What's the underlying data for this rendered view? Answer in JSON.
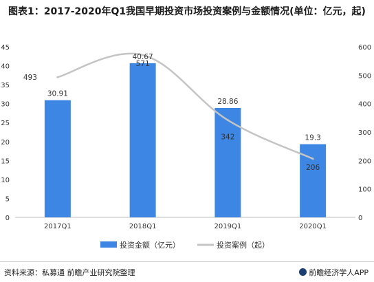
{
  "title": "图表1：2017-2020年Q1我国早期投资市场投资案例与金额情况(单位：亿元，起)",
  "chart_data": {
    "type": "bar+line",
    "categories": [
      "2017Q1",
      "2018Q1",
      "2019Q1",
      "2020Q1"
    ],
    "series": [
      {
        "name": "投资金额（亿元）",
        "type": "bar",
        "axis": "left",
        "values": [
          30.91,
          40.67,
          28.86,
          19.3
        ],
        "color": "#3d86e3"
      },
      {
        "name": "投资案例（起）",
        "type": "line",
        "axis": "right",
        "values": [
          493,
          571,
          342,
          206
        ],
        "color": "#c4c4c4"
      }
    ],
    "left_axis": {
      "min": 0,
      "max": 45,
      "ticks": [
        0,
        5,
        10,
        15,
        20,
        25,
        30,
        35,
        40,
        45
      ]
    },
    "right_axis": {
      "min": 0,
      "max": 600,
      "ticks": [
        0,
        100,
        200,
        300,
        400,
        500,
        600
      ]
    },
    "bar_labels": [
      "30.91",
      "40.67",
      "28.86",
      "19.3"
    ],
    "line_labels": [
      "493",
      "571",
      "342",
      "206"
    ],
    "legend_position": "bottom",
    "grid": false
  },
  "legend": {
    "bar_label": "投资金额（亿元）",
    "line_label": "投资案例（起）"
  },
  "footer": {
    "source": "资料来源：私募通 前瞻产业研究院整理",
    "brand": "前瞻经济学人APP"
  }
}
